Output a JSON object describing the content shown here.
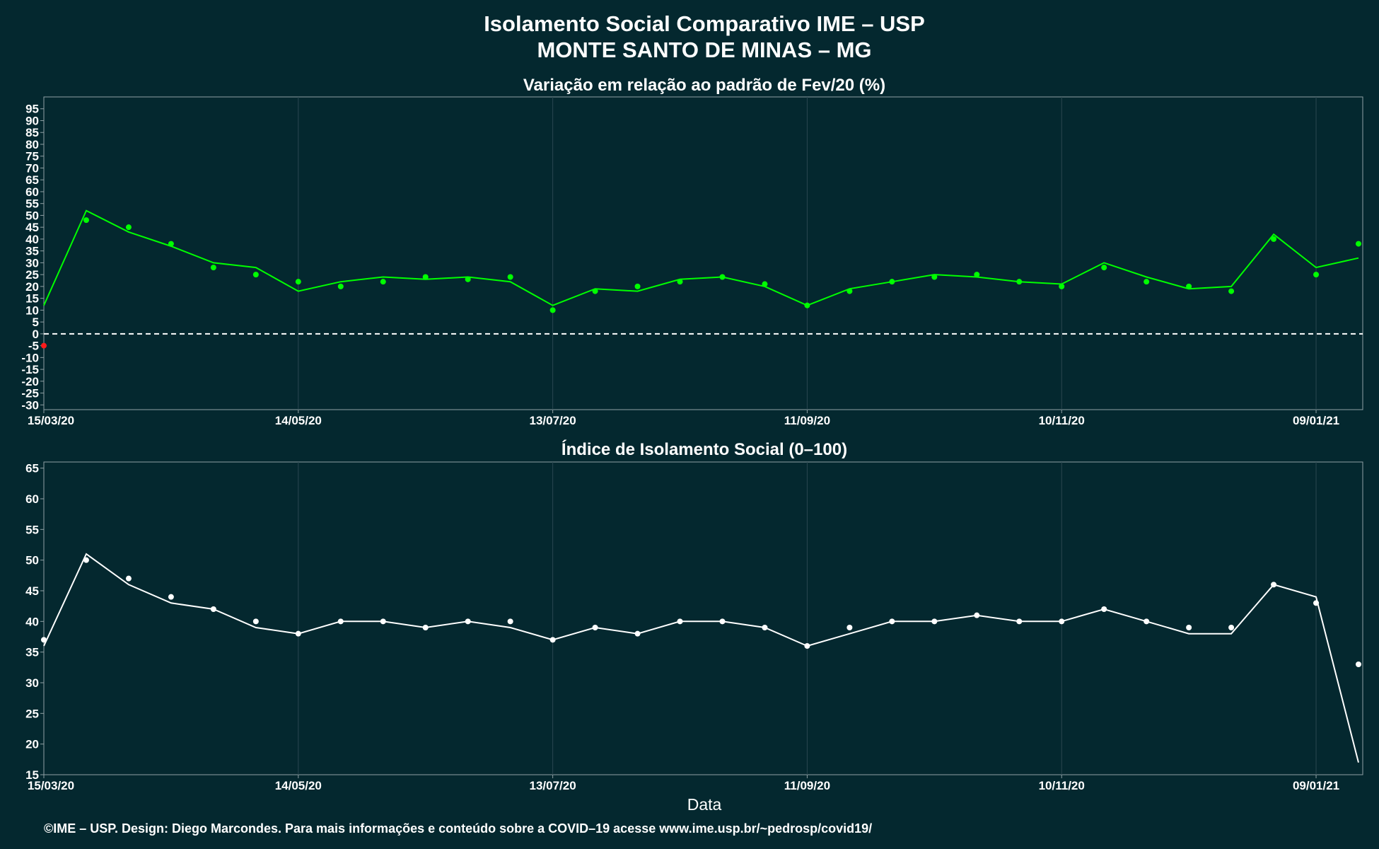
{
  "title_line1": "Isolamento Social Comparativo IME – USP",
  "title_line2": "MONTE SANTO DE MINAS – MG",
  "footer": "©IME – USP. Design: Diego Marcondes. Para mais informações e conteúdo sobre a COVID–19 acesse www.ime.usp.br/~pedrosp/covid19/",
  "colors": {
    "background": "#04282f",
    "positive": "#00ff00",
    "negative": "#ff1a1a",
    "index": "#ffffff",
    "grid": "#2a4750",
    "frame": "#8fa0a4"
  },
  "chart_data": [
    {
      "type": "scatter",
      "title": "Variação em relação ao padrão de Fev/20 (%)",
      "xlabel": "",
      "ylabel": "",
      "x_ticks": [
        "15/03/20",
        "14/05/20",
        "13/07/20",
        "11/09/20",
        "10/11/20",
        "09/01/21"
      ],
      "x_range": [
        "15/03/20",
        "20/01/21"
      ],
      "ylim": [
        -32,
        100
      ],
      "y_ticks": [
        -30,
        -25,
        -20,
        -15,
        -10,
        -5,
        0,
        5,
        10,
        15,
        20,
        25,
        30,
        35,
        40,
        45,
        50,
        55,
        60,
        65,
        70,
        75,
        80,
        85,
        90,
        95
      ],
      "reference_line": 0,
      "grid": true,
      "legend": "none",
      "series": [
        {
          "style": "points (green above 0, red below 0) with moving-average line",
          "dates": [
            "15/03/20",
            "25/03/20",
            "04/04/20",
            "14/04/20",
            "24/04/20",
            "04/05/20",
            "14/05/20",
            "24/05/20",
            "03/06/20",
            "13/06/20",
            "23/06/20",
            "03/07/20",
            "13/07/20",
            "23/07/20",
            "02/08/20",
            "12/08/20",
            "22/08/20",
            "01/09/20",
            "11/09/20",
            "21/09/20",
            "01/10/20",
            "11/10/20",
            "21/10/20",
            "31/10/20",
            "10/11/20",
            "20/11/20",
            "30/11/20",
            "10/12/20",
            "20/12/20",
            "30/12/20",
            "09/01/21",
            "19/01/21"
          ],
          "values": [
            -5,
            48,
            45,
            38,
            28,
            25,
            22,
            20,
            22,
            24,
            23,
            24,
            10,
            18,
            20,
            22,
            24,
            21,
            12,
            18,
            22,
            24,
            25,
            22,
            20,
            28,
            22,
            20,
            18,
            40,
            25,
            38
          ],
          "trend": [
            12,
            52,
            43,
            37,
            30,
            28,
            18,
            22,
            24,
            23,
            24,
            22,
            12,
            19,
            18,
            23,
            24,
            20,
            12,
            19,
            22,
            25,
            24,
            22,
            21,
            30,
            24,
            19,
            20,
            42,
            28,
            32
          ]
        }
      ]
    },
    {
      "type": "scatter",
      "title": "Índice de Isolamento Social (0–100)",
      "xlabel": "Data",
      "ylabel": "",
      "x_ticks": [
        "15/03/20",
        "14/05/20",
        "13/07/20",
        "11/09/20",
        "10/11/20",
        "09/01/21"
      ],
      "x_range": [
        "15/03/20",
        "20/01/21"
      ],
      "ylim": [
        15,
        66
      ],
      "y_ticks": [
        15,
        20,
        25,
        30,
        35,
        40,
        45,
        50,
        55,
        60,
        65
      ],
      "grid": true,
      "legend": "none",
      "series": [
        {
          "style": "white points with moving-average line",
          "dates": [
            "15/03/20",
            "25/03/20",
            "04/04/20",
            "14/04/20",
            "24/04/20",
            "04/05/20",
            "14/05/20",
            "24/05/20",
            "03/06/20",
            "13/06/20",
            "23/06/20",
            "03/07/20",
            "13/07/20",
            "23/07/20",
            "02/08/20",
            "12/08/20",
            "22/08/20",
            "01/09/20",
            "11/09/20",
            "21/09/20",
            "01/10/20",
            "11/10/20",
            "21/10/20",
            "31/10/20",
            "10/11/20",
            "20/11/20",
            "30/11/20",
            "10/12/20",
            "20/12/20",
            "30/12/20",
            "09/01/21",
            "19/01/21"
          ],
          "values": [
            37,
            50,
            47,
            44,
            42,
            40,
            38,
            40,
            40,
            39,
            40,
            40,
            37,
            39,
            38,
            40,
            40,
            39,
            36,
            39,
            40,
            40,
            41,
            40,
            40,
            42,
            40,
            39,
            39,
            46,
            43,
            33
          ],
          "trend": [
            36,
            51,
            46,
            43,
            42,
            39,
            38,
            40,
            40,
            39,
            40,
            39,
            37,
            39,
            38,
            40,
            40,
            39,
            36,
            38,
            40,
            40,
            41,
            40,
            40,
            42,
            40,
            38,
            38,
            46,
            44,
            17
          ]
        }
      ]
    }
  ]
}
